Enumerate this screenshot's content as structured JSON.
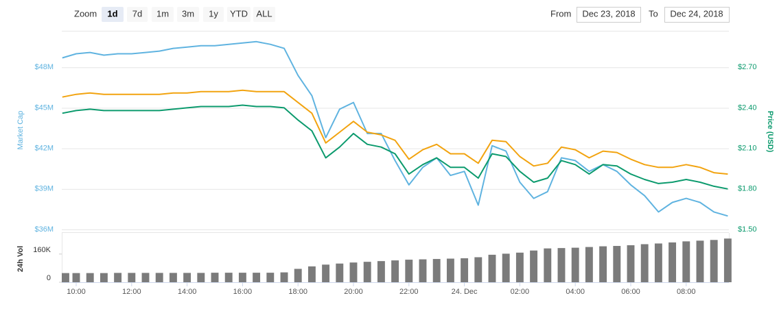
{
  "controls": {
    "zoom_label": "Zoom",
    "zoom_buttons": [
      "1d",
      "7d",
      "1m",
      "3m",
      "1y",
      "YTD",
      "ALL"
    ],
    "from_label": "From",
    "from_value": "Dec 23, 2018",
    "to_label": "To",
    "to_value": "Dec 24, 2018"
  },
  "chart_data": [
    {
      "type": "line",
      "ylabel": "Market Cap",
      "y2label": "Price (USD)",
      "x": [
        9.5,
        10,
        10.5,
        11,
        11.5,
        12,
        12.5,
        13,
        13.5,
        14,
        14.5,
        15,
        15.5,
        16,
        16.5,
        17,
        17.5,
        18,
        18.5,
        19,
        19.5,
        20,
        20.5,
        21,
        21.5,
        22,
        22.5,
        23,
        23.5,
        24,
        24.5,
        25,
        25.5,
        26,
        26.5,
        27,
        27.5,
        28,
        28.5,
        29,
        29.5,
        30,
        30.5,
        31,
        31.5,
        32,
        32.5,
        33,
        33.5
      ],
      "xlim": [
        9.48,
        33.54
      ],
      "ylim": [
        36000000,
        50700000
      ],
      "yticks": [
        {
          "value": 36000000,
          "label": "$36M"
        },
        {
          "value": 39000000,
          "label": "$39M"
        },
        {
          "value": 42000000,
          "label": "$42M"
        },
        {
          "value": 45000000,
          "label": "$45M"
        },
        {
          "value": 48000000,
          "label": "$48M"
        }
      ],
      "y2lim": [
        1.5,
        2.97
      ],
      "y2ticks": [
        {
          "value": 1.5,
          "label": "$1.50"
        },
        {
          "value": 1.8,
          "label": "$1.80"
        },
        {
          "value": 2.1,
          "label": "$2.10"
        },
        {
          "value": 2.4,
          "label": "$2.40"
        },
        {
          "value": 2.7,
          "label": "$2.70"
        }
      ],
      "grid": true,
      "series": [
        {
          "color": "#5fb3e0",
          "axis": "y",
          "values": [
            48700000,
            49000000,
            49100000,
            48900000,
            49000000,
            49000000,
            49100000,
            49200000,
            49400000,
            49500000,
            49600000,
            49600000,
            49700000,
            49800000,
            49900000,
            49700000,
            49400000,
            47400000,
            45900000,
            42800000,
            44900000,
            45400000,
            43100000,
            43100000,
            41100000,
            39300000,
            40600000,
            41300000,
            40000000,
            40300000,
            37800000,
            42200000,
            41800000,
            39500000,
            38300000,
            38800000,
            41300000,
            41100000,
            40300000,
            40800000,
            40300000,
            39300000,
            38500000,
            37300000,
            38000000,
            38300000,
            38000000,
            37300000,
            37000000
          ]
        },
        {
          "color": "#f2a30f",
          "axis": "y2",
          "values": [
            2.48,
            2.5,
            2.51,
            2.5,
            2.5,
            2.5,
            2.5,
            2.5,
            2.51,
            2.51,
            2.52,
            2.52,
            2.52,
            2.53,
            2.52,
            2.52,
            2.52,
            2.44,
            2.36,
            2.14,
            2.22,
            2.3,
            2.22,
            2.2,
            2.16,
            2.02,
            2.09,
            2.13,
            2.06,
            2.06,
            1.99,
            2.16,
            2.15,
            2.04,
            1.97,
            1.99,
            2.11,
            2.09,
            2.03,
            2.08,
            2.07,
            2.02,
            1.98,
            1.96,
            1.96,
            1.98,
            1.96,
            1.92,
            1.91
          ]
        },
        {
          "color": "#0b9a6d",
          "axis": "y2",
          "values": [
            2.36,
            2.38,
            2.39,
            2.38,
            2.38,
            2.38,
            2.38,
            2.38,
            2.39,
            2.4,
            2.41,
            2.41,
            2.41,
            2.42,
            2.41,
            2.41,
            2.4,
            2.31,
            2.23,
            2.03,
            2.11,
            2.21,
            2.13,
            2.11,
            2.06,
            1.91,
            1.98,
            2.03,
            1.96,
            1.96,
            1.88,
            2.06,
            2.04,
            1.93,
            1.85,
            1.88,
            2.01,
            1.98,
            1.91,
            1.98,
            1.97,
            1.91,
            1.87,
            1.84,
            1.85,
            1.87,
            1.85,
            1.82,
            1.8
          ]
        }
      ]
    },
    {
      "type": "bar",
      "ylabel": "24h Vol",
      "color": "#7b7b7b",
      "x": [
        9.5,
        10,
        10.5,
        11,
        11.5,
        12,
        12.5,
        13,
        13.5,
        14,
        14.5,
        15,
        15.5,
        16,
        16.5,
        17,
        17.5,
        18,
        18.5,
        19,
        19.5,
        20,
        20.5,
        21,
        21.5,
        22,
        22.5,
        23,
        23.5,
        24,
        24.5,
        25,
        25.5,
        26,
        26.5,
        27,
        27.5,
        28,
        28.5,
        29,
        29.5,
        30,
        30.5,
        31,
        31.5,
        32,
        32.5,
        33,
        33.5
      ],
      "values": [
        52000,
        52000,
        52000,
        52000,
        53000,
        53000,
        53000,
        53000,
        53000,
        53000,
        53000,
        54000,
        54000,
        54000,
        54000,
        54000,
        56000,
        76000,
        90000,
        100000,
        106000,
        112000,
        116000,
        120000,
        124000,
        128000,
        130000,
        132000,
        134000,
        136000,
        142000,
        156000,
        162000,
        168000,
        180000,
        192000,
        194000,
        196000,
        200000,
        204000,
        206000,
        210000,
        216000,
        220000,
        226000,
        232000,
        236000,
        240000,
        248000
      ],
      "xlim": [
        9.48,
        33.54
      ],
      "xticks": [
        {
          "value": 10,
          "label": "10:00"
        },
        {
          "value": 12,
          "label": "12:00"
        },
        {
          "value": 14,
          "label": "14:00"
        },
        {
          "value": 16,
          "label": "16:00"
        },
        {
          "value": 18,
          "label": "18:00"
        },
        {
          "value": 20,
          "label": "20:00"
        },
        {
          "value": 22,
          "label": "22:00"
        },
        {
          "value": 24,
          "label": "24. Dec"
        },
        {
          "value": 26,
          "label": "02:00"
        },
        {
          "value": 28,
          "label": "04:00"
        },
        {
          "value": 30,
          "label": "06:00"
        },
        {
          "value": 32,
          "label": "08:00"
        }
      ],
      "ylim": [
        0,
        280000
      ],
      "yticks": [
        0,
        {
          "value": 160000,
          "label": "160K"
        }
      ]
    }
  ]
}
